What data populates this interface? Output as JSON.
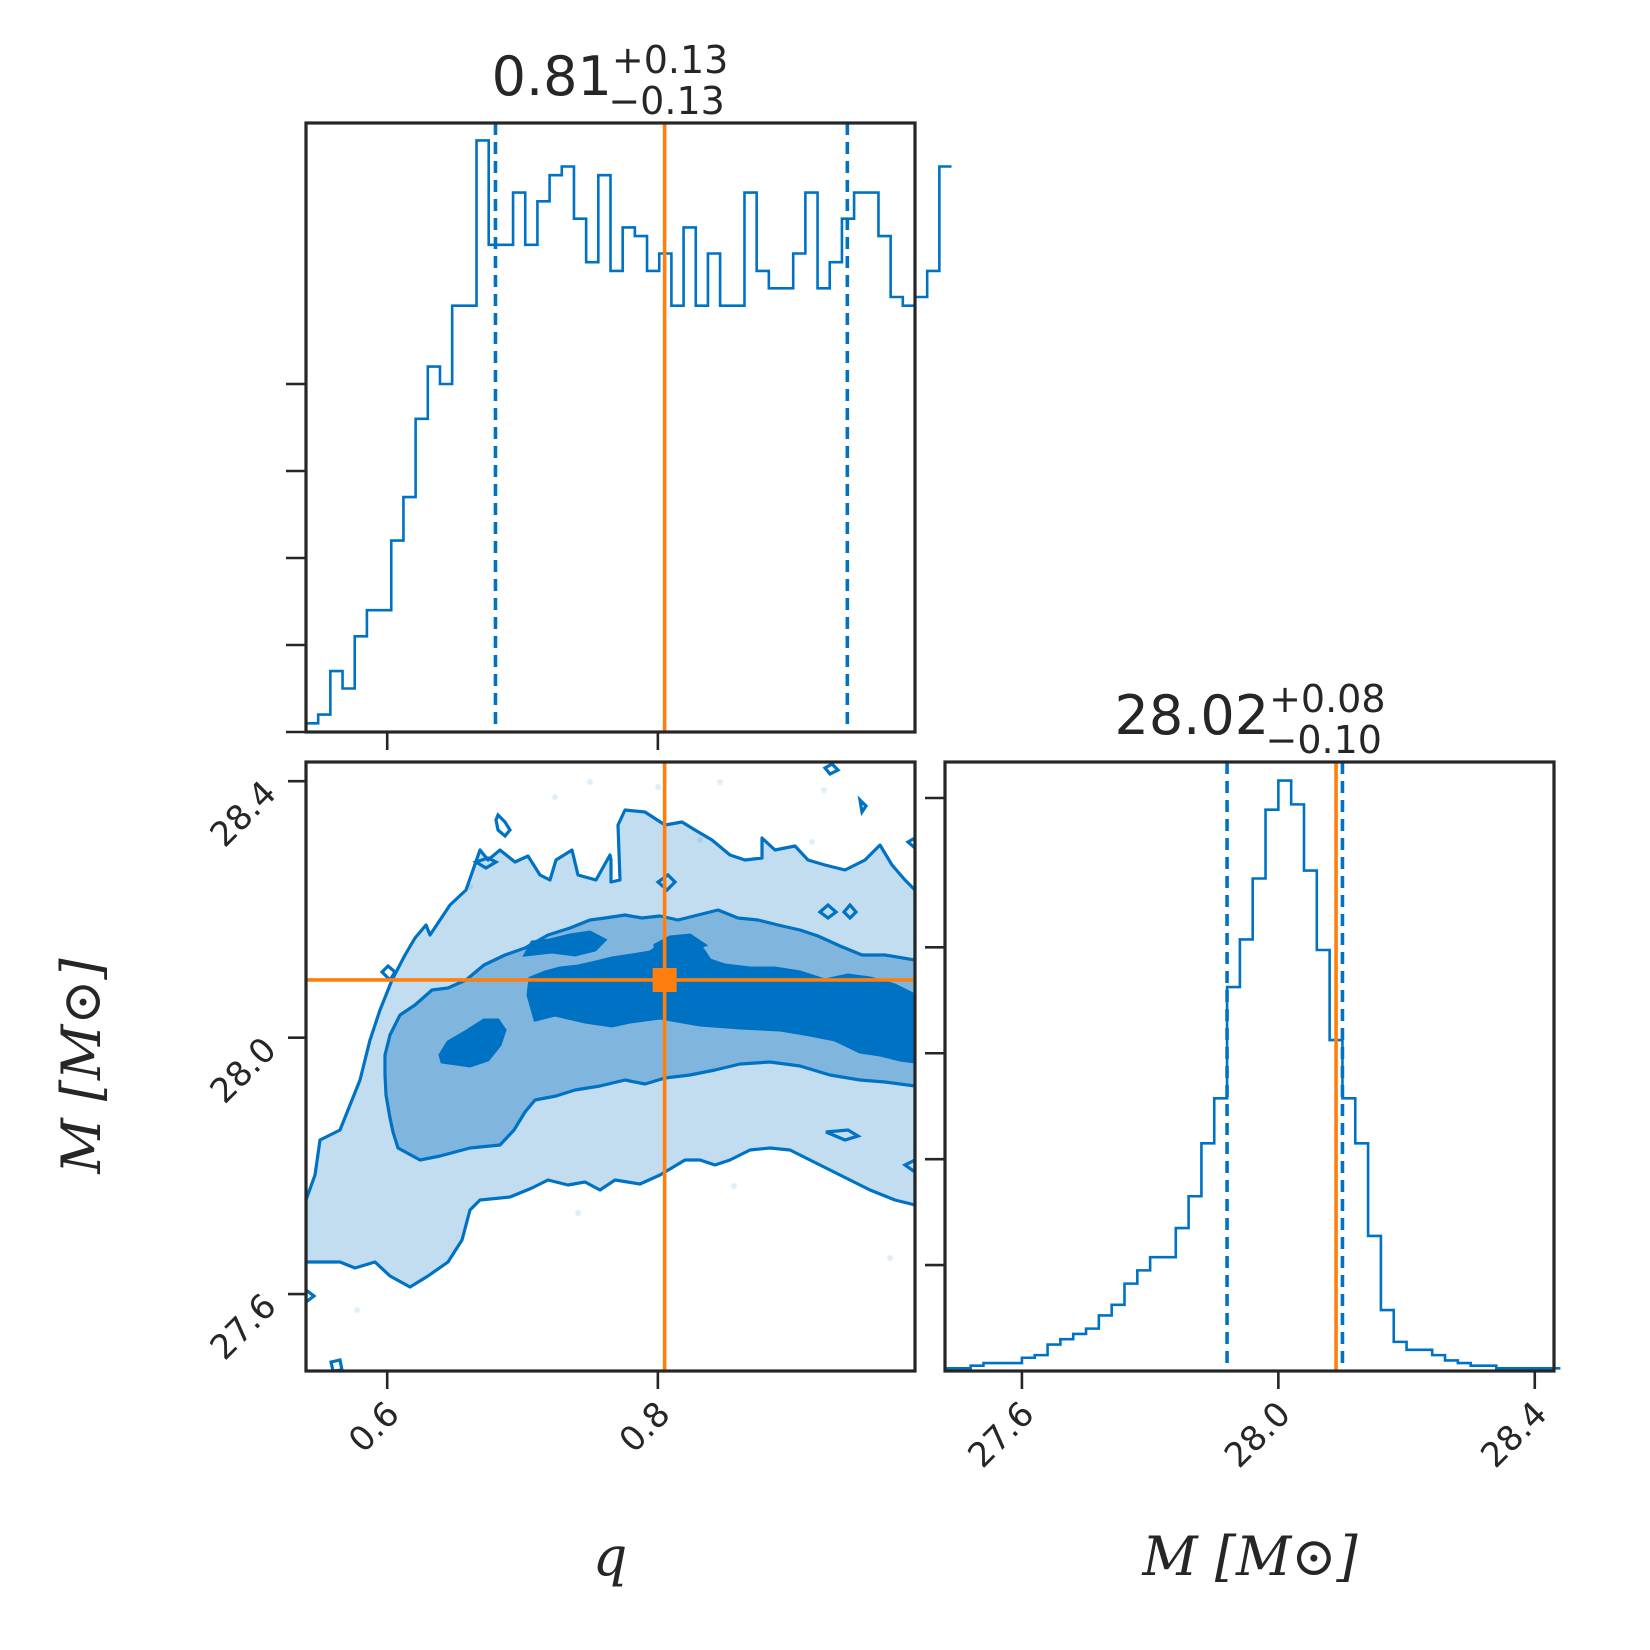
{
  "colors": {
    "posterior": "#0072c4",
    "truth": "#ff7f0e",
    "axes": "#262626"
  },
  "chart_data": [
    {
      "type": "bar",
      "panel": "q-marginal",
      "title": {
        "median": "0.81",
        "plus": "+0.13",
        "minus": "−0.13"
      },
      "xlim": [
        0.54,
        0.99
      ],
      "bin_edges_start": 0.54,
      "bin_width": 0.009,
      "counts": [
        1,
        2,
        7,
        5,
        11,
        14,
        14,
        22,
        27,
        36,
        42,
        40,
        49,
        49,
        68,
        56,
        56,
        62,
        56,
        61,
        64,
        65,
        59,
        54,
        64,
        53,
        58,
        57,
        53,
        55,
        49,
        58,
        49,
        55,
        49,
        49,
        62,
        53,
        51,
        51,
        55,
        62,
        51,
        54,
        59,
        62,
        62,
        57,
        50,
        49,
        50,
        53,
        65
      ],
      "ylim": [
        0,
        70
      ],
      "yticks": [
        10,
        20,
        30,
        40
      ],
      "quantiles": [
        0.68,
        0.94
      ],
      "truth": 0.805,
      "xticks": [
        "0.6",
        "0.8"
      ],
      "xlabel": "q",
      "ylabel": ""
    },
    {
      "type": "heatmap",
      "panel": "q-M-joint",
      "xlim": [
        0.54,
        0.99
      ],
      "ylim": [
        27.48,
        28.43
      ],
      "truth_point": {
        "q": 0.805,
        "M": 28.09
      },
      "contour_levels": [
        "outer",
        "middle",
        "inner"
      ],
      "xticks": [
        "0.6",
        "0.8"
      ],
      "yticks": [
        "28.4",
        "28.0",
        "27.6"
      ],
      "xlabel": "q",
      "ylabel": "M [M⊙]"
    },
    {
      "type": "bar",
      "panel": "M-marginal",
      "title": {
        "median": "28.02",
        "plus": "+0.08",
        "minus": "−0.10"
      },
      "xlim": [
        27.48,
        28.43
      ],
      "bin_edges_start": 27.48,
      "bin_width": 0.02,
      "counts": [
        0.1,
        0.1,
        0.2,
        0.3,
        0.3,
        0.3,
        0.5,
        0.6,
        1.0,
        1.2,
        1.4,
        1.6,
        2.1,
        2.5,
        3.3,
        3.8,
        4.3,
        4.3,
        5.4,
        6.6,
        8.6,
        10.3,
        14.5,
        16.3,
        18.6,
        21.2,
        22.3,
        21.4,
        18.9,
        15.9,
        12.5,
        10.3,
        8.6,
        5.1,
        2.3,
        1.1,
        0.8,
        0.8,
        0.6,
        0.4,
        0.3,
        0.2,
        0.2,
        0.1,
        0.1,
        0.1,
        0.1,
        0.1
      ],
      "ylim": [
        0,
        23
      ],
      "yticks": [
        4,
        8,
        12,
        16
      ],
      "quantiles": [
        27.92,
        28.1
      ],
      "truth": 28.09,
      "xticks": [
        "27.6",
        "28.0",
        "28.4"
      ],
      "xlabel": "M [M⊙]",
      "ylabel": ""
    }
  ]
}
